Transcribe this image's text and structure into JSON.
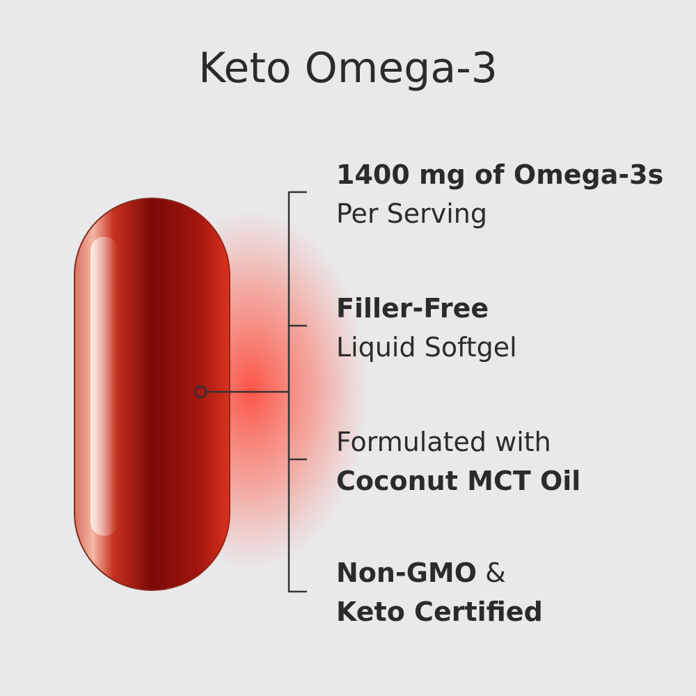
{
  "title": "Keto Omega-3",
  "features": [
    {
      "lines": [
        [
          {
            "text": "1400 mg of Omega-3s",
            "bold": true
          }
        ],
        [
          {
            "text": "Per Serving",
            "bold": false
          }
        ]
      ]
    },
    {
      "lines": [
        [
          {
            "text": "Filler-Free",
            "bold": true
          }
        ],
        [
          {
            "text": "Liquid Softgel",
            "bold": false
          }
        ]
      ]
    },
    {
      "lines": [
        [
          {
            "text": "Formulated with",
            "bold": false
          }
        ],
        [
          {
            "text": "Coconut MCT Oil",
            "bold": true
          }
        ]
      ]
    },
    {
      "lines": [
        [
          {
            "text": "Non-GMO",
            "bold": true
          },
          {
            "text": "&",
            "bold": false
          }
        ],
        [
          {
            "text": "Keto Certified",
            "bold": true
          }
        ]
      ]
    }
  ]
}
